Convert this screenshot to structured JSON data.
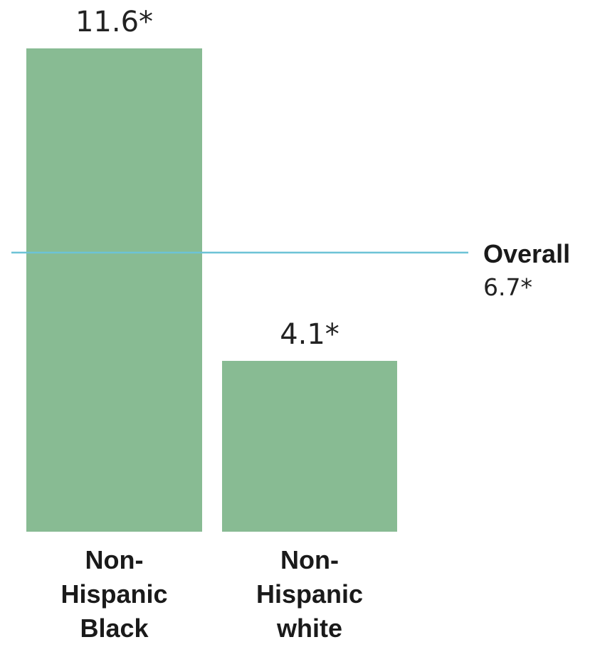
{
  "chart_data": {
    "type": "bar",
    "categories": [
      "Non-Hispanic Black",
      "Non-Hispanic white"
    ],
    "category_lines": [
      [
        "Non-",
        "Hispanic",
        "Black"
      ],
      [
        "Non-",
        "Hispanic",
        "white"
      ]
    ],
    "values": [
      11.6,
      4.1
    ],
    "value_labels": [
      "11.6*",
      "4.1*"
    ],
    "reference_line": {
      "label": "Overall",
      "value": 6.7,
      "value_label": "6.7*"
    },
    "ylim": [
      0,
      11.6
    ],
    "grid": false,
    "colors": {
      "bar": "#88bb93",
      "reference_line": "#6cc3d6"
    }
  }
}
